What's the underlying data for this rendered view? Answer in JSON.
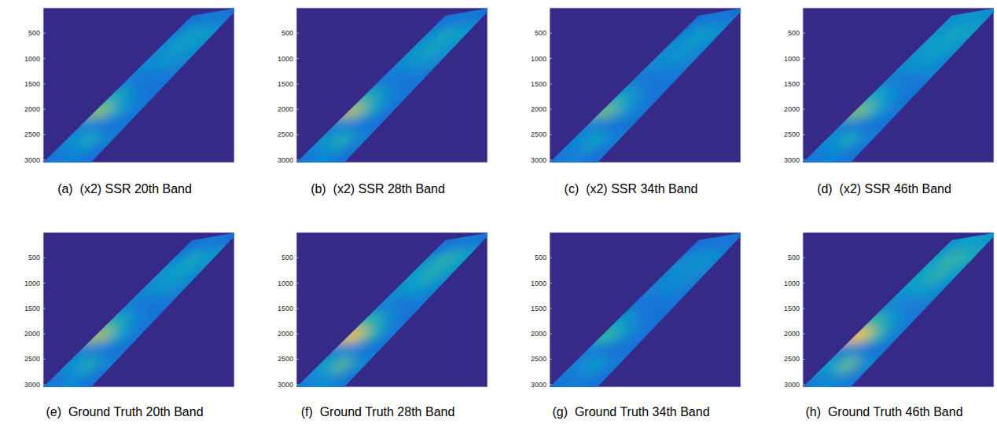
{
  "chart_data": [
    {
      "type": "image",
      "title": "(a)  (x2) SSR 20th Band",
      "ylim": [
        0,
        3050
      ],
      "yticks": [
        500,
        1000,
        1500,
        2000,
        2500,
        3000
      ],
      "tick_labels": "y",
      "cell_range": [
        0,
        1
      ],
      "cells": [
        [
          0.22,
          0.28,
          0.2
        ],
        [
          0.3,
          0.42,
          0.25
        ],
        [
          0.25,
          0.22,
          0.2
        ],
        [
          0.62,
          0.36,
          0.22
        ],
        [
          0.42,
          0.28,
          0.2
        ],
        [
          0.24,
          0.2,
          0.22
        ],
        [
          0.28,
          0.32,
          0.26
        ],
        [
          0.3,
          0.38,
          0.3
        ],
        [
          0.3,
          0.4,
          0.34
        ],
        [
          0.2,
          0.24,
          0.2
        ]
      ]
    },
    {
      "type": "image",
      "title": "(b)  (x2) SSR 28th Band",
      "ylim": [
        0,
        3050
      ],
      "yticks": [
        500,
        1000,
        1500,
        2000,
        2500,
        3000
      ],
      "tick_labels": "y",
      "cell_range": [
        0,
        1
      ],
      "cells": [
        [
          0.22,
          0.3,
          0.2
        ],
        [
          0.32,
          0.45,
          0.26
        ],
        [
          0.25,
          0.22,
          0.2
        ],
        [
          0.68,
          0.4,
          0.22
        ],
        [
          0.45,
          0.3,
          0.2
        ],
        [
          0.24,
          0.2,
          0.22
        ],
        [
          0.28,
          0.33,
          0.27
        ],
        [
          0.32,
          0.42,
          0.32
        ],
        [
          0.3,
          0.42,
          0.35
        ],
        [
          0.2,
          0.24,
          0.2
        ]
      ]
    },
    {
      "type": "image",
      "title": "(c)  (x2) SSR 34th Band",
      "ylim": [
        0,
        3050
      ],
      "yticks": [
        500,
        1000,
        1500,
        2000,
        2500,
        3000
      ],
      "tick_labels": "y",
      "cell_range": [
        0,
        1
      ],
      "cells": [
        [
          0.22,
          0.27,
          0.2
        ],
        [
          0.28,
          0.4,
          0.24
        ],
        [
          0.24,
          0.22,
          0.2
        ],
        [
          0.58,
          0.35,
          0.22
        ],
        [
          0.4,
          0.27,
          0.2
        ],
        [
          0.23,
          0.2,
          0.22
        ],
        [
          0.27,
          0.3,
          0.25
        ],
        [
          0.3,
          0.36,
          0.28
        ],
        [
          0.28,
          0.38,
          0.32
        ],
        [
          0.2,
          0.23,
          0.2
        ]
      ]
    },
    {
      "type": "image",
      "title": "(d)  (x2) SSR 46th Band",
      "ylim": [
        0,
        3050
      ],
      "yticks": [
        500,
        1000,
        1500,
        2000,
        2500,
        3000
      ],
      "tick_labels": "y",
      "cell_range": [
        0,
        1
      ],
      "cells": [
        [
          0.22,
          0.28,
          0.2
        ],
        [
          0.3,
          0.42,
          0.25
        ],
        [
          0.25,
          0.22,
          0.2
        ],
        [
          0.6,
          0.38,
          0.22
        ],
        [
          0.42,
          0.3,
          0.2
        ],
        [
          0.25,
          0.22,
          0.24
        ],
        [
          0.3,
          0.34,
          0.28
        ],
        [
          0.33,
          0.4,
          0.32
        ],
        [
          0.34,
          0.42,
          0.38
        ],
        [
          0.3,
          0.34,
          0.3
        ]
      ]
    },
    {
      "type": "image",
      "title": "(e)  Ground Truth 20th Band",
      "ylim": [
        0,
        3050
      ],
      "yticks": [
        500,
        1000,
        1500,
        2000,
        2500,
        3000
      ],
      "tick_labels": "y",
      "cell_range": [
        0,
        1
      ],
      "cells": [
        [
          0.22,
          0.3,
          0.2
        ],
        [
          0.3,
          0.44,
          0.25
        ],
        [
          0.25,
          0.22,
          0.2
        ],
        [
          0.66,
          0.4,
          0.22
        ],
        [
          0.44,
          0.3,
          0.2
        ],
        [
          0.24,
          0.2,
          0.22
        ],
        [
          0.28,
          0.34,
          0.26
        ],
        [
          0.32,
          0.4,
          0.3
        ],
        [
          0.3,
          0.42,
          0.35
        ],
        [
          0.2,
          0.24,
          0.2
        ]
      ]
    },
    {
      "type": "image",
      "title": "(f)  Ground Truth 28th Band",
      "ylim": [
        0,
        3050
      ],
      "yticks": [
        500,
        1000,
        1500,
        2000,
        2500,
        3000
      ],
      "tick_labels": "y",
      "cell_range": [
        0,
        1
      ],
      "cells": [
        [
          0.24,
          0.32,
          0.22
        ],
        [
          0.36,
          0.55,
          0.28
        ],
        [
          0.26,
          0.24,
          0.2
        ],
        [
          0.8,
          0.48,
          0.24
        ],
        [
          0.5,
          0.32,
          0.2
        ],
        [
          0.25,
          0.22,
          0.23
        ],
        [
          0.3,
          0.36,
          0.28
        ],
        [
          0.36,
          0.48,
          0.34
        ],
        [
          0.34,
          0.5,
          0.4
        ],
        [
          0.2,
          0.25,
          0.2
        ]
      ]
    },
    {
      "type": "image",
      "title": "(g)  Ground Truth 34th Band",
      "ylim": [
        0,
        3050
      ],
      "yticks": [
        500,
        1000,
        1500,
        2000,
        2500,
        3000
      ],
      "tick_labels": "y",
      "cell_range": [
        0,
        1
      ],
      "cells": [
        [
          0.21,
          0.26,
          0.2
        ],
        [
          0.26,
          0.36,
          0.23
        ],
        [
          0.23,
          0.21,
          0.2
        ],
        [
          0.5,
          0.32,
          0.21
        ],
        [
          0.36,
          0.25,
          0.2
        ],
        [
          0.22,
          0.2,
          0.21
        ],
        [
          0.25,
          0.28,
          0.24
        ],
        [
          0.28,
          0.33,
          0.26
        ],
        [
          0.27,
          0.35,
          0.3
        ],
        [
          0.2,
          0.22,
          0.2
        ]
      ]
    },
    {
      "type": "image",
      "title": "(h)  Ground Truth 46th Band",
      "ylim": [
        0,
        3050
      ],
      "yticks": [
        500,
        1000,
        1500,
        2000,
        2500,
        3000
      ],
      "tick_labels": "y",
      "cell_range": [
        0,
        1
      ],
      "cells": [
        [
          0.24,
          0.3,
          0.22
        ],
        [
          0.36,
          0.58,
          0.28
        ],
        [
          0.26,
          0.24,
          0.2
        ],
        [
          0.82,
          0.5,
          0.24
        ],
        [
          0.5,
          0.34,
          0.22
        ],
        [
          0.27,
          0.24,
          0.25
        ],
        [
          0.32,
          0.38,
          0.3
        ],
        [
          0.38,
          0.5,
          0.36
        ],
        [
          0.38,
          0.52,
          0.44
        ],
        [
          0.32,
          0.38,
          0.34
        ]
      ]
    }
  ]
}
